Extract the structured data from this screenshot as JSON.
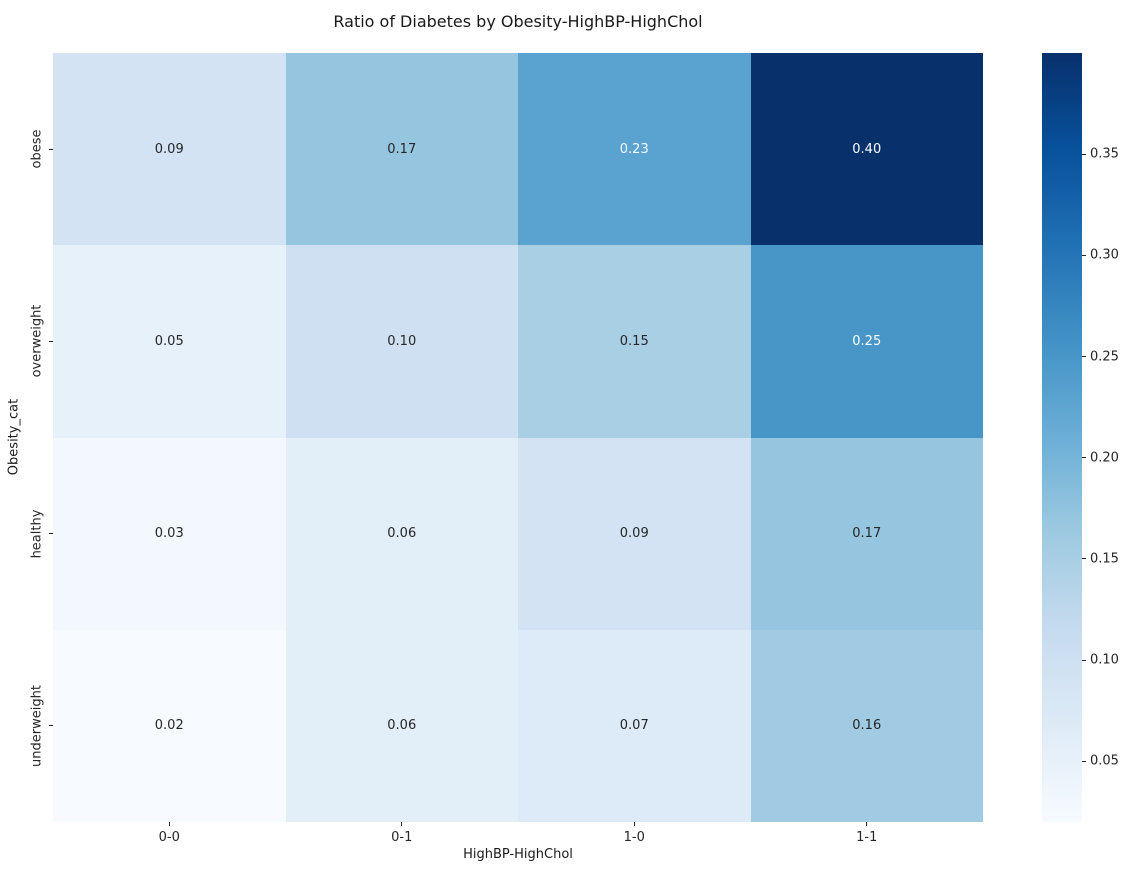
{
  "chart_data": {
    "type": "heatmap",
    "title": "Ratio of Diabetes by Obesity-HighBP-HighChol",
    "xlabel": "HighBP-HighChol",
    "ylabel": "Obesity_cat",
    "x_categories": [
      "0-0",
      "0-1",
      "1-0",
      "1-1"
    ],
    "y_categories": [
      "obese",
      "overweight",
      "healthy",
      "underweight"
    ],
    "values": [
      [
        0.09,
        0.17,
        0.23,
        0.4
      ],
      [
        0.05,
        0.1,
        0.15,
        0.25
      ],
      [
        0.03,
        0.06,
        0.09,
        0.17
      ],
      [
        0.02,
        0.06,
        0.07,
        0.16
      ]
    ],
    "cell_colors": [
      [
        "#d3e3f3",
        "#96c6df",
        "#5aa2cf",
        "#08306b"
      ],
      [
        "#e7f1fa",
        "#cee0f1",
        "#a9cfe5",
        "#4896c8"
      ],
      [
        "#f2f8fd",
        "#e2eef8",
        "#d3e3f3",
        "#96c6df"
      ],
      [
        "#f7fbff",
        "#e2eef8",
        "#ddeaf7",
        "#a0cbe2"
      ]
    ],
    "annot_colors": [
      [
        "#262626",
        "#262626",
        "#ffffff",
        "#ffffff"
      ],
      [
        "#262626",
        "#262626",
        "#262626",
        "#ffffff"
      ],
      [
        "#262626",
        "#262626",
        "#262626",
        "#262626"
      ],
      [
        "#262626",
        "#262626",
        "#262626",
        "#262626"
      ]
    ],
    "colormap": "Blues",
    "grid": false,
    "legend_position": "right",
    "colorbar": {
      "vmin": 0.02,
      "vmax": 0.4,
      "tick_labels": [
        "0.05",
        "0.10",
        "0.15",
        "0.20",
        "0.25",
        "0.30",
        "0.35"
      ],
      "gradient_bottom_to_top": [
        "#f7fbff",
        "#deebf7",
        "#c6dbef",
        "#9ecae1",
        "#6baed6",
        "#4292c6",
        "#2171b5",
        "#08519c",
        "#08306b"
      ]
    }
  }
}
